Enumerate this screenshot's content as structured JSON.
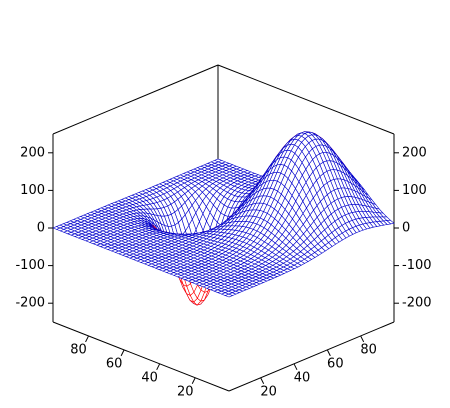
{
  "chart_data": {
    "type": "surface",
    "title": "",
    "xlabel": "",
    "ylabel": "",
    "zlabel": "",
    "grid": false,
    "x_range": [
      1,
      100
    ],
    "y_range": [
      1,
      100
    ],
    "z_range": [
      -250,
      250
    ],
    "x_ticks": [
      "20",
      "40",
      "60",
      "80"
    ],
    "y_ticks": [
      "20",
      "40",
      "60",
      "80"
    ],
    "z_ticks": [
      "200",
      "100",
      "0",
      "-100",
      "-200"
    ],
    "surface": {
      "components": [
        {
          "x_center": 30,
          "y_center": 78,
          "x_width": 20,
          "y_width": 24,
          "amplitude": 240
        },
        {
          "x_center": 72,
          "y_center": 58,
          "x_width": 12,
          "y_width": 14,
          "amplitude": -260
        }
      ],
      "mesh_rows": 49,
      "mesh_cols": 49,
      "upper_color": "#ff0000",
      "lower_color": "#0000cc"
    }
  }
}
